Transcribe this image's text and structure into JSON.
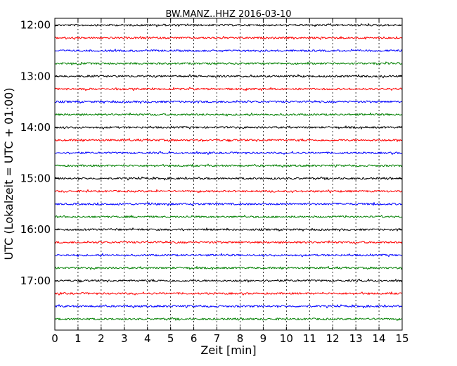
{
  "chart_data": {
    "type": "line",
    "title": "BW.MANZ..HHZ 2016-03-10",
    "xlabel": "Zeit  [min]",
    "ylabel": "UTC (Lokalzeit = UTC + 01:00)",
    "xlim": [
      0,
      15
    ],
    "x_ticks": [
      "0",
      "1",
      "2",
      "3",
      "4",
      "5",
      "6",
      "7",
      "8",
      "9",
      "10",
      "11",
      "12",
      "13",
      "14",
      "15"
    ],
    "y_tick_labels": [
      "12:00",
      "13:00",
      "14:00",
      "15:00",
      "16:00",
      "17:00"
    ],
    "y_range_hours": [
      "11:52",
      "17:58"
    ],
    "grid": "vertical dotted lines at each minute",
    "trace_interval_min": 15,
    "trace_colors": [
      "#000000",
      "#ff0000",
      "#0000ff",
      "#008000"
    ],
    "series": [
      {
        "start": "12:00"
      },
      {
        "start": "12:15"
      },
      {
        "start": "12:30"
      },
      {
        "start": "12:45"
      },
      {
        "start": "13:00"
      },
      {
        "start": "13:15"
      },
      {
        "start": "13:30"
      },
      {
        "start": "13:45"
      },
      {
        "start": "14:00"
      },
      {
        "start": "14:15"
      },
      {
        "start": "14:30"
      },
      {
        "start": "14:45"
      },
      {
        "start": "15:00"
      },
      {
        "start": "15:15"
      },
      {
        "start": "15:30"
      },
      {
        "start": "15:45"
      },
      {
        "start": "16:00"
      },
      {
        "start": "16:15"
      },
      {
        "start": "16:30"
      },
      {
        "start": "16:45"
      },
      {
        "start": "17:00"
      },
      {
        "start": "17:15"
      },
      {
        "start": "17:30"
      },
      {
        "start": "17:45"
      }
    ]
  }
}
